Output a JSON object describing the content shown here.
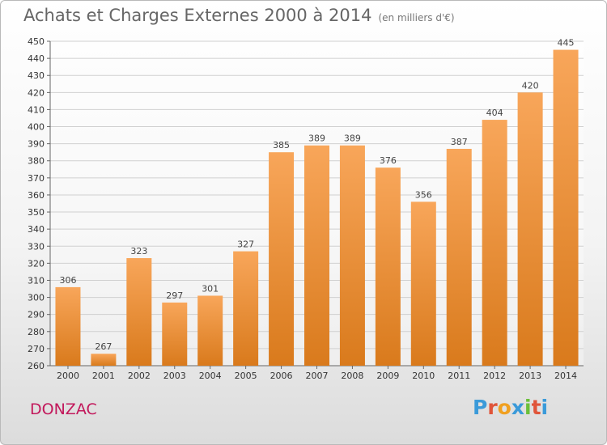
{
  "title": "Achats et Charges Externes 2000 à 2014",
  "subtitle": "(en milliers d'€)",
  "commune": "DONZAC",
  "logo": {
    "letters": [
      "P",
      "r",
      "o",
      "x",
      "i",
      "t",
      "i"
    ],
    "colors": [
      "#3a9ad9",
      "#e0553a",
      "#f0a020",
      "#3a9ad9",
      "#6bbf3a",
      "#e0553a",
      "#3a9ad9"
    ]
  },
  "colors": {
    "bar_top": "#f8a65a",
    "bar_bottom": "#d97a1c",
    "grid": "#d0d0d0"
  },
  "chart_data": {
    "type": "bar",
    "title": "Achats et Charges Externes 2000 à 2014",
    "subtitle": "(en milliers d'€)",
    "categories": [
      "2000",
      "2001",
      "2002",
      "2003",
      "2004",
      "2005",
      "2006",
      "2007",
      "2008",
      "2009",
      "2010",
      "2011",
      "2012",
      "2013",
      "2014"
    ],
    "values": [
      306,
      267,
      323,
      297,
      301,
      327,
      385,
      389,
      389,
      376,
      356,
      387,
      404,
      420,
      445
    ],
    "ylim": [
      260,
      450
    ],
    "ytick_step": 10,
    "grid": true
  }
}
